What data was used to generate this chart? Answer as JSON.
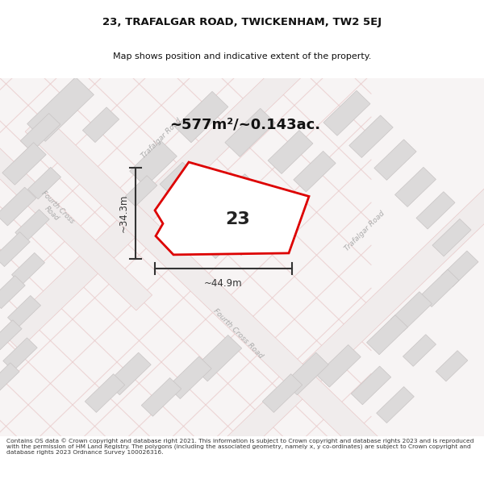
{
  "title_line1": "23, TRAFALGAR ROAD, TWICKENHAM, TW2 5EJ",
  "title_line2": "Map shows position and indicative extent of the property.",
  "area_text": "~577m²/~0.143ac.",
  "number_label": "23",
  "width_label": "~44.9m",
  "height_label": "~34.3m",
  "footer_text": "Contains OS data © Crown copyright and database right 2021. This information is subject to Crown copyright and database rights 2023 and is reproduced with the permission of HM Land Registry. The polygons (including the associated geometry, namely x, y co-ordinates) are subject to Crown copyright and database rights 2023 Ordnance Survey 100026316.",
  "map_bg": "#f7f4f4",
  "road_fill": "#f0ecec",
  "road_outline": "#e8c8c8",
  "building_fill": "#dcdada",
  "building_edge": "#c8c4c4",
  "property_fill": "#ffffff",
  "property_edge": "#dd0000",
  "dim_color": "#333333",
  "road_label_color": "#aaaaaa",
  "title_color": "#111111",
  "footer_color": "#333333",
  "footer_bg": "#ffffff",
  "title_bg": "#ffffff"
}
